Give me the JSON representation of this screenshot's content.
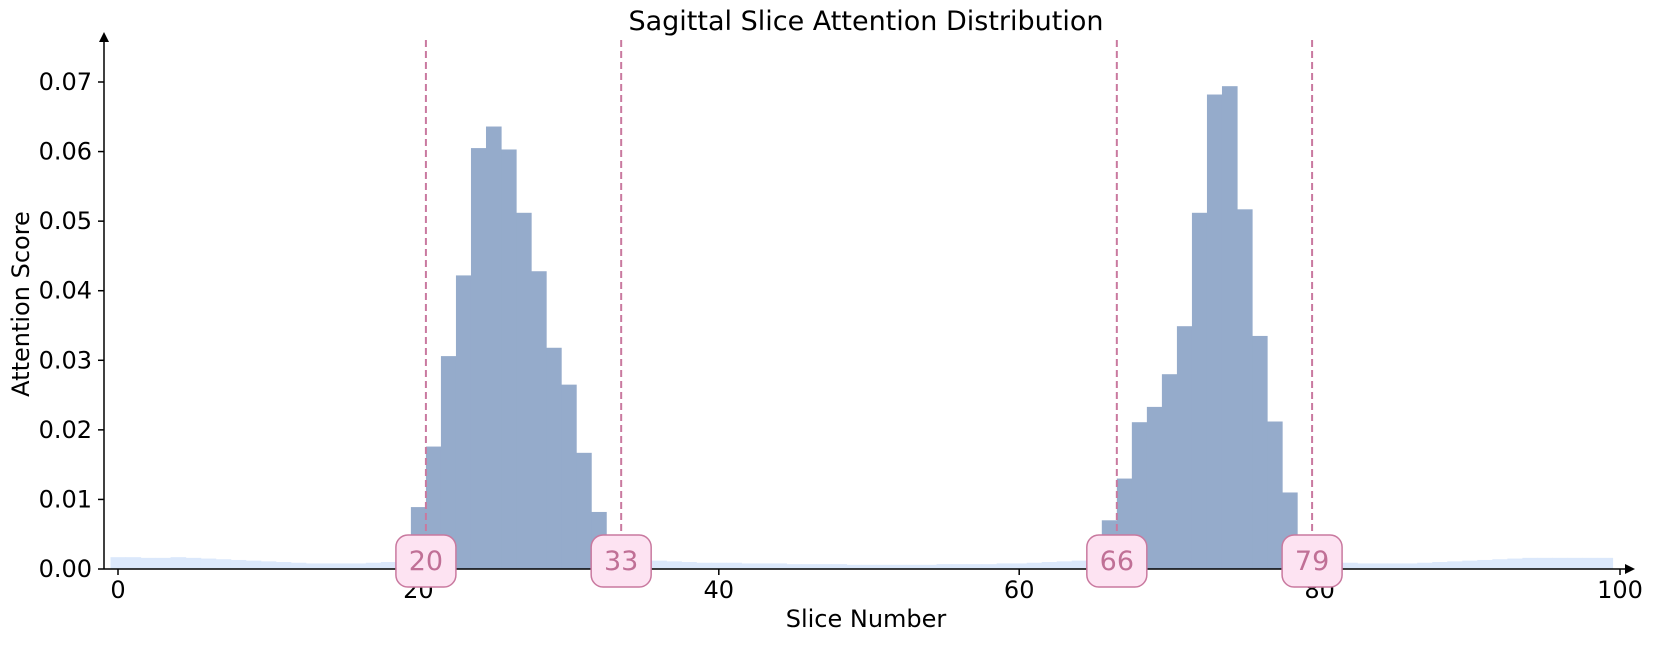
{
  "chart_data": {
    "type": "bar",
    "title": "Sagittal Slice Attention Distribution",
    "xlabel": "Slice Number",
    "ylabel": "Attention Score",
    "xlim": [
      -0.5,
      100.5
    ],
    "ylim": [
      0,
      0.076
    ],
    "xticks": [
      "0",
      "20",
      "40",
      "60",
      "80",
      "100"
    ],
    "yticks": [
      "0.00",
      "0.01",
      "0.02",
      "0.03",
      "0.04",
      "0.05",
      "0.06",
      "0.07"
    ],
    "grid": false,
    "colors": {
      "highlight_bars": "#95abcb",
      "background_bars": "#dbe8fb",
      "marker_line": "#c9799f",
      "marker_box_fill": "#fde3f2",
      "marker_box_stroke": "#c9799f",
      "marker_text": "#c07096"
    },
    "background_series": {
      "x": [
        0,
        1,
        2,
        3,
        4,
        5,
        6,
        7,
        8,
        9,
        10,
        11,
        12,
        13,
        14,
        15,
        16,
        17,
        18,
        19,
        34,
        35,
        36,
        37,
        38,
        39,
        40,
        41,
        42,
        43,
        44,
        45,
        46,
        47,
        48,
        49,
        50,
        51,
        52,
        53,
        54,
        55,
        56,
        57,
        58,
        59,
        60,
        61,
        62,
        63,
        64,
        65,
        80,
        81,
        82,
        83,
        84,
        85,
        86,
        87,
        88,
        89,
        90,
        91,
        92,
        93,
        94,
        95,
        96,
        97,
        98,
        99
      ],
      "values": [
        0.0017,
        0.0017,
        0.0016,
        0.0016,
        0.0017,
        0.0016,
        0.0015,
        0.0014,
        0.0013,
        0.0012,
        0.0011,
        0.001,
        0.0009,
        0.0008,
        0.0008,
        0.0008,
        0.0008,
        0.0009,
        0.001,
        0.0012,
        0.0014,
        0.0013,
        0.0012,
        0.0011,
        0.001,
        0.0009,
        0.0009,
        0.0009,
        0.0008,
        0.0008,
        0.0008,
        0.0007,
        0.0007,
        0.0007,
        0.0007,
        0.0006,
        0.0006,
        0.0006,
        0.0006,
        0.0006,
        0.0006,
        0.0007,
        0.0007,
        0.0007,
        0.0007,
        0.0008,
        0.0008,
        0.0009,
        0.001,
        0.0011,
        0.0012,
        0.0014,
        0.0012,
        0.001,
        0.0009,
        0.0008,
        0.0008,
        0.0008,
        0.0008,
        0.0009,
        0.001,
        0.0011,
        0.0012,
        0.0013,
        0.0014,
        0.0015,
        0.0016,
        0.0016,
        0.0016,
        0.0016,
        0.0016,
        0.0016
      ]
    },
    "highlight_series": {
      "x": [
        20,
        21,
        22,
        23,
        24,
        25,
        26,
        27,
        28,
        29,
        30,
        31,
        32,
        66,
        67,
        68,
        69,
        70,
        71,
        72,
        73,
        74,
        75,
        76,
        77,
        78
      ],
      "values": [
        0.0089,
        0.0176,
        0.0306,
        0.0422,
        0.0605,
        0.0636,
        0.0603,
        0.0512,
        0.0428,
        0.0318,
        0.0265,
        0.0167,
        0.0082,
        0.007,
        0.013,
        0.0211,
        0.0233,
        0.028,
        0.0349,
        0.0512,
        0.0682,
        0.0694,
        0.0517,
        0.0335,
        0.0212,
        0.011
      ]
    },
    "marker_positions": [
      20.5,
      33.5,
      66.5,
      79.5
    ],
    "markers": [
      "20",
      "33",
      "66",
      "79"
    ]
  }
}
